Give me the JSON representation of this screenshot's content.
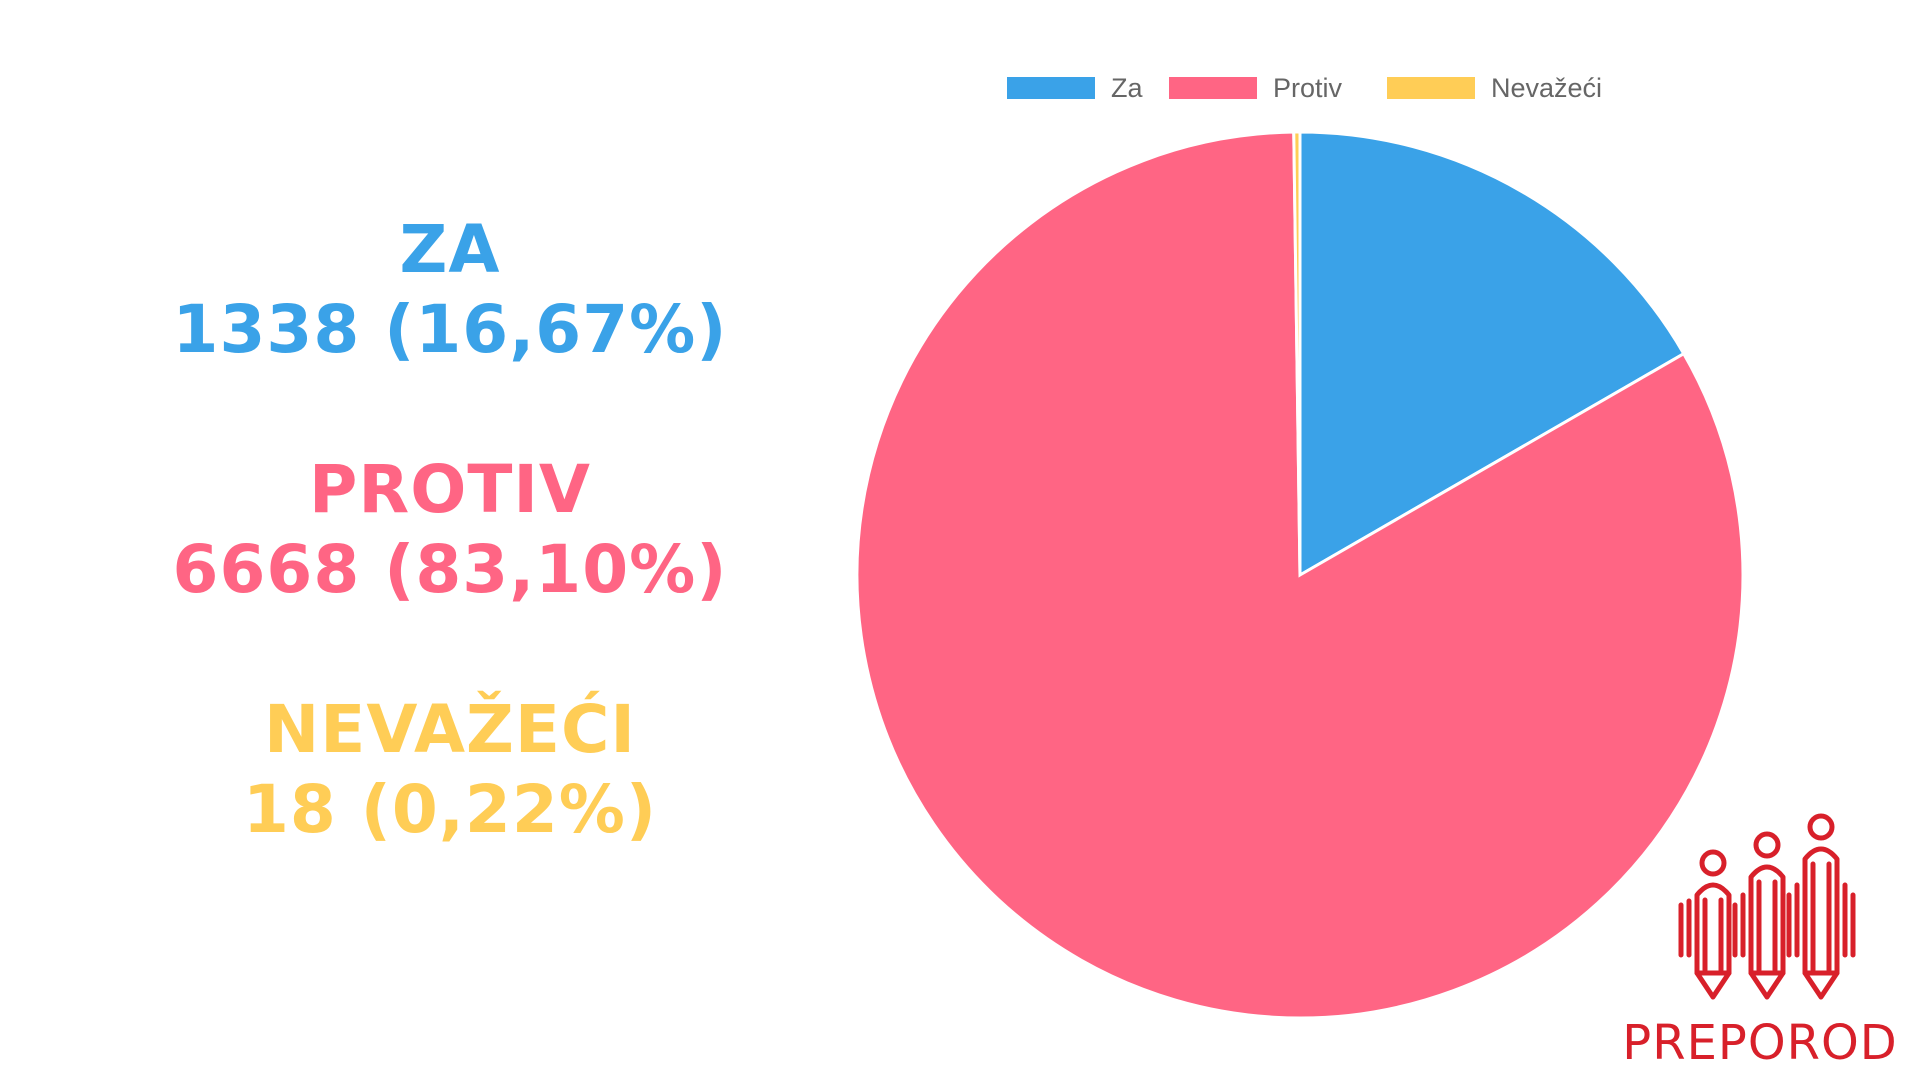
{
  "summary": [
    {
      "label": "ZA",
      "value_text": "1338 (16,67%)",
      "color": "#3aa2e8"
    },
    {
      "label": "PROTIV",
      "value_text": "6668 (83,10%)",
      "color": "#ff6584"
    },
    {
      "label": "NEVAŽEĆI",
      "value_text": "18 (0,22%)",
      "color": "#ffcd56"
    }
  ],
  "chart_data": {
    "type": "pie",
    "categories": [
      "Za",
      "Protiv",
      "Nevažeći"
    ],
    "values": [
      1338,
      6668,
      18
    ],
    "colors": [
      "#3aa2e8",
      "#ff6584",
      "#ffcd56"
    ],
    "legend": "top",
    "start": "top",
    "direction": "clockwise"
  },
  "logo": {
    "text": "PREPOROD",
    "color": "#d8202a",
    "icon": "three-people-pencils-icon"
  }
}
